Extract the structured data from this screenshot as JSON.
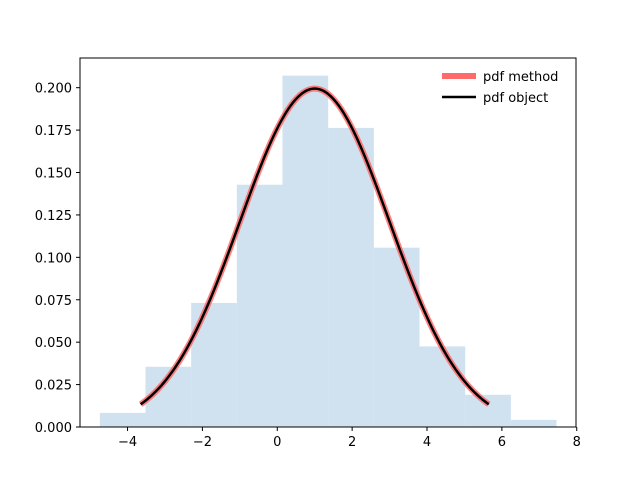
{
  "chart_data": {
    "type": "histogram_with_line",
    "title": "",
    "xlabel": "",
    "ylabel": "",
    "xlim": [
      -5.27,
      7.98
    ],
    "ylim": [
      0,
      0.2175
    ],
    "x_ticks": [
      -4,
      -2,
      0,
      2,
      4,
      6,
      8
    ],
    "x_tick_labels": [
      "−4",
      "−2",
      "0",
      "2",
      "4",
      "6",
      "8"
    ],
    "y_ticks": [
      0,
      0.025,
      0.05,
      0.075,
      0.1,
      0.125,
      0.15,
      0.175,
      0.2
    ],
    "y_tick_labels": [
      "0.000",
      "0.025",
      "0.050",
      "0.075",
      "0.100",
      "0.125",
      "0.150",
      "0.175",
      "0.200"
    ],
    "grid": false,
    "legend_position": "top-right",
    "histogram": {
      "bin_edges": [
        -4.74,
        -3.52,
        -2.3,
        -1.08,
        0.14,
        1.36,
        2.58,
        3.8,
        5.02,
        6.24,
        7.46
      ],
      "densities": [
        0.0083,
        0.0355,
        0.0731,
        0.1428,
        0.2071,
        0.1763,
        0.1057,
        0.0475,
        0.019,
        0.0042
      ],
      "color": "#d0e1ef"
    },
    "series": [
      {
        "name": "pdf method",
        "kind": "normal_pdf",
        "mean": 1,
        "std": 2,
        "x_range": [
          -3.65,
          5.65
        ],
        "color": "#ff6a6a"
      },
      {
        "name": "pdf object",
        "kind": "normal_pdf",
        "mean": 1,
        "std": 2,
        "x_range": [
          -3.65,
          5.65
        ],
        "color": "#000000"
      }
    ]
  }
}
